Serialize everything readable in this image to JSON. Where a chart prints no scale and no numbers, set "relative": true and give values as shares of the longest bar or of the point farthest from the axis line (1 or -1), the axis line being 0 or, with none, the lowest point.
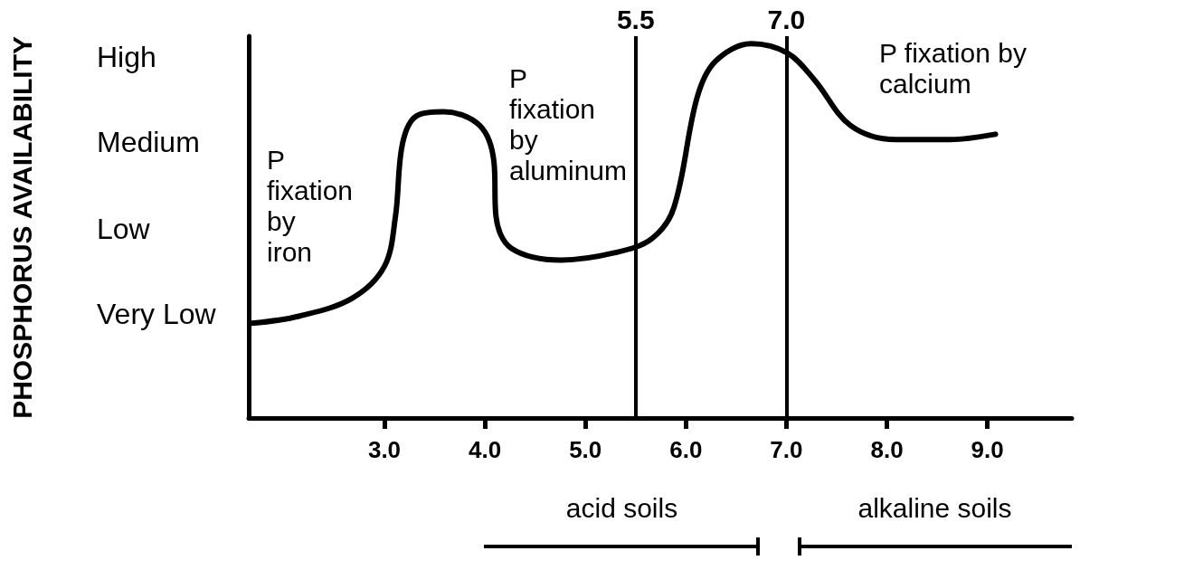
{
  "chart_data": {
    "type": "line",
    "relative": true,
    "x": [
      1.68,
      2.15,
      2.68,
      3.0,
      3.11,
      3.18,
      3.32,
      3.59,
      3.95,
      4.09,
      4.11,
      4.26,
      4.76,
      5.3,
      5.66,
      5.88,
      6.11,
      6.29,
      6.65,
      7.01,
      7.28,
      7.64,
      8.09,
      8.63,
      9.08
    ],
    "series": [
      {
        "color": "#000000",
        "values": [
          0.253,
          0.272,
          0.32,
          0.405,
          0.539,
          0.733,
          0.807,
          0.818,
          0.781,
          0.684,
          0.539,
          0.454,
          0.422,
          0.442,
          0.479,
          0.562,
          0.855,
          0.952,
          1.0,
          0.975,
          0.903,
          0.781,
          0.744,
          0.744,
          0.758
        ]
      }
    ],
    "xlim": [
      1.65,
      9.84
    ],
    "xticks": [
      {
        "value": 3,
        "label": "3.0"
      },
      {
        "value": 4,
        "label": "4.0"
      },
      {
        "value": 5,
        "label": "5.0"
      },
      {
        "value": 6,
        "label": "6.0"
      },
      {
        "value": 7,
        "label": "7.0"
      },
      {
        "value": 8,
        "label": "8.0"
      },
      {
        "value": 9,
        "label": "9.0"
      }
    ],
    "ref_lines": [
      {
        "axis": "x",
        "value": 5.5,
        "label": "5.5"
      },
      {
        "axis": "x",
        "value": 7.0,
        "label": "7.0"
      }
    ],
    "annotations": [
      "PHOSPHORUS AVAILABILITY",
      "Very Low",
      "Low",
      "Medium",
      "High",
      "P\nfixation\nby\niron",
      "P\nfixation\nby\naluminum",
      "P fixation by\ncalcium",
      "acid soils",
      "alkaline soils"
    ],
    "grid": false,
    "marker": "none",
    "line_style": "solid"
  }
}
